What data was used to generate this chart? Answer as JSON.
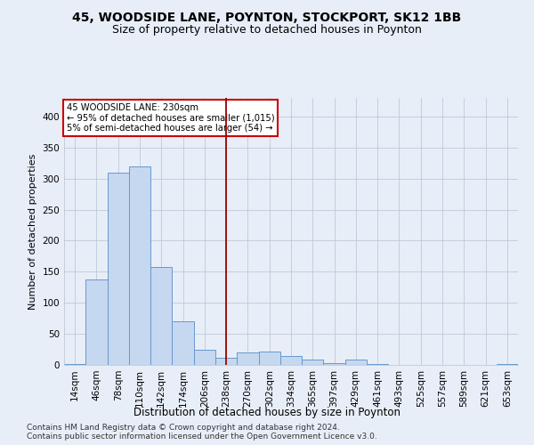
{
  "title1": "45, WOODSIDE LANE, POYNTON, STOCKPORT, SK12 1BB",
  "title2": "Size of property relative to detached houses in Poynton",
  "xlabel": "Distribution of detached houses by size in Poynton",
  "ylabel": "Number of detached properties",
  "bar_labels": [
    "14sqm",
    "46sqm",
    "78sqm",
    "110sqm",
    "142sqm",
    "174sqm",
    "206sqm",
    "238sqm",
    "270sqm",
    "302sqm",
    "334sqm",
    "365sqm",
    "397sqm",
    "429sqm",
    "461sqm",
    "493sqm",
    "525sqm",
    "557sqm",
    "589sqm",
    "621sqm",
    "653sqm"
  ],
  "bar_values": [
    2,
    137,
    310,
    320,
    158,
    70,
    25,
    12,
    20,
    22,
    15,
    8,
    3,
    8,
    1,
    0,
    0,
    0,
    0,
    0,
    1
  ],
  "bar_color": "#c5d8f0",
  "bar_edge_color": "#6699cc",
  "vline_x_index": 7,
  "vline_color": "#990000",
  "ylim": [
    0,
    430
  ],
  "yticks": [
    0,
    50,
    100,
    150,
    200,
    250,
    300,
    350,
    400
  ],
  "annotation_line1": "45 WOODSIDE LANE: 230sqm",
  "annotation_line2": "← 95% of detached houses are smaller (1,015)",
  "annotation_line3": "5% of semi-detached houses are larger (54) →",
  "annotation_box_color": "#ffffff",
  "annotation_box_edge": "#cc0000",
  "footer_text": "Contains HM Land Registry data © Crown copyright and database right 2024.\nContains public sector information licensed under the Open Government Licence v3.0.",
  "background_color": "#e8eef8",
  "grid_color": "#c0c8d8",
  "title1_fontsize": 10,
  "title2_fontsize": 9,
  "xlabel_fontsize": 8.5,
  "ylabel_fontsize": 8,
  "tick_fontsize": 7.5,
  "footer_fontsize": 6.5
}
